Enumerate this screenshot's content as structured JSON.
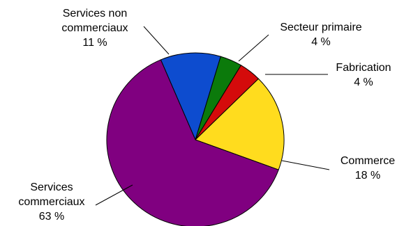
{
  "chart_data": {
    "type": "pie",
    "slices": [
      {
        "name": "Services non commerciaux",
        "label_lines": [
          "Services non",
          "commerciaux"
        ],
        "value": 11,
        "value_label": "11 %",
        "color": "#0d4ccf"
      },
      {
        "name": "Secteur primaire",
        "label_lines": [
          "Secteur primaire"
        ],
        "value": 4,
        "value_label": "4 %",
        "color": "#0b7a0b"
      },
      {
        "name": "Fabrication",
        "label_lines": [
          "Fabrication"
        ],
        "value": 4,
        "value_label": "4 %",
        "color": "#d40b0b"
      },
      {
        "name": "Commerce",
        "label_lines": [
          "Commerce"
        ],
        "value": 18,
        "value_label": "18 %",
        "color": "#ffdc1e"
      },
      {
        "name": "Services commerciaux",
        "label_lines": [
          "Services",
          "commerciaux"
        ],
        "value": 63,
        "value_label": "63 %",
        "color": "#800080"
      }
    ],
    "legend": "none"
  }
}
